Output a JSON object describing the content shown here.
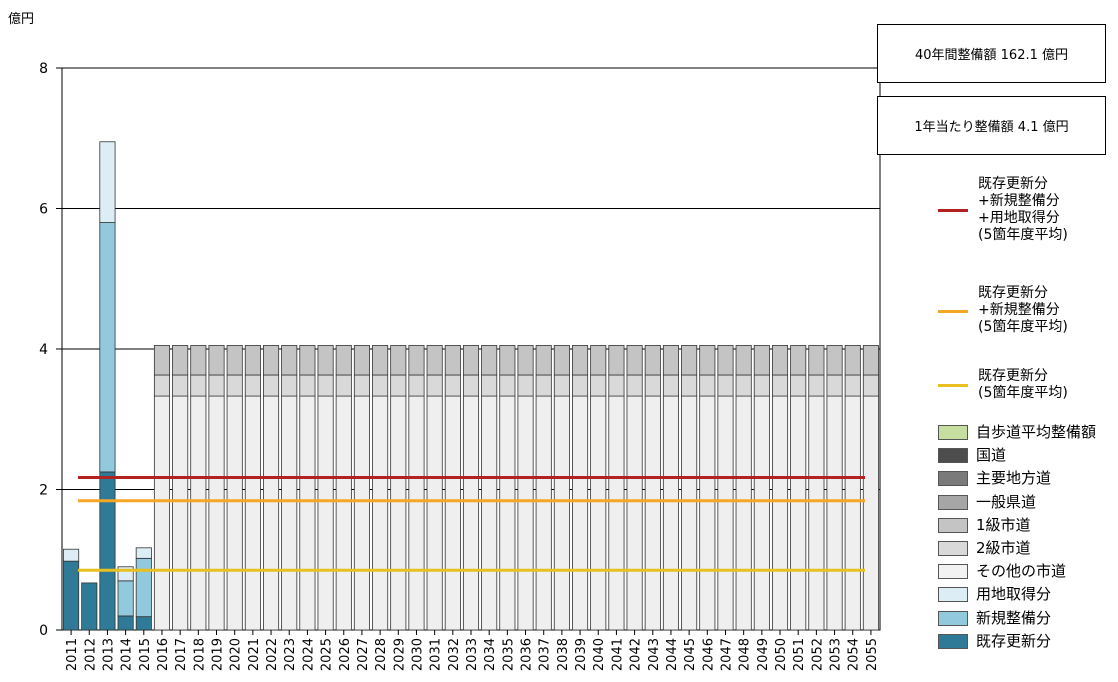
{
  "chart_data": {
    "type": "bar",
    "ylabel": "億円",
    "ylim": [
      0,
      8
    ],
    "yticks": [
      0,
      2,
      4,
      6,
      8
    ],
    "categories": [
      "2011",
      "2012",
      "2013",
      "2014",
      "2015",
      "2016",
      "2017",
      "2018",
      "2019",
      "2020",
      "2021",
      "2022",
      "2023",
      "2024",
      "2025",
      "2026",
      "2027",
      "2028",
      "2029",
      "2030",
      "2031",
      "2032",
      "2033",
      "2034",
      "2035",
      "2036",
      "2037",
      "2038",
      "2039",
      "2040",
      "2041",
      "2042",
      "2043",
      "2044",
      "2045",
      "2046",
      "2047",
      "2048",
      "2049",
      "2050",
      "2051",
      "2052",
      "2053",
      "2054",
      "2055"
    ],
    "series": [
      {
        "name": "既存更新分",
        "color": "#2f7a96",
        "values": [
          0.98,
          0.67,
          2.25,
          0.2,
          0.19,
          0,
          0,
          0,
          0,
          0,
          0,
          0,
          0,
          0,
          0,
          0,
          0,
          0,
          0,
          0,
          0,
          0,
          0,
          0,
          0,
          0,
          0,
          0,
          0,
          0,
          0,
          0,
          0,
          0,
          0,
          0,
          0,
          0,
          0,
          0,
          0,
          0,
          0,
          0,
          0
        ]
      },
      {
        "name": "新規整備分",
        "color": "#92c9dc",
        "values": [
          0.0,
          0.0,
          3.55,
          0.5,
          0.83,
          0,
          0,
          0,
          0,
          0,
          0,
          0,
          0,
          0,
          0,
          0,
          0,
          0,
          0,
          0,
          0,
          0,
          0,
          0,
          0,
          0,
          0,
          0,
          0,
          0,
          0,
          0,
          0,
          0,
          0,
          0,
          0,
          0,
          0,
          0,
          0,
          0,
          0,
          0,
          0
        ]
      },
      {
        "name": "用地取得分",
        "color": "#dcedf5",
        "values": [
          0.17,
          0.0,
          1.15,
          0.2,
          0.15,
          0,
          0,
          0,
          0,
          0,
          0,
          0,
          0,
          0,
          0,
          0,
          0,
          0,
          0,
          0,
          0,
          0,
          0,
          0,
          0,
          0,
          0,
          0,
          0,
          0,
          0,
          0,
          0,
          0,
          0,
          0,
          0,
          0,
          0,
          0,
          0,
          0,
          0,
          0,
          0
        ]
      },
      {
        "name": "その他の市道",
        "color": "#efefef",
        "values": [
          0,
          0,
          0,
          0,
          0,
          3.33,
          3.33,
          3.33,
          3.33,
          3.33,
          3.33,
          3.33,
          3.33,
          3.33,
          3.33,
          3.33,
          3.33,
          3.33,
          3.33,
          3.33,
          3.33,
          3.33,
          3.33,
          3.33,
          3.33,
          3.33,
          3.33,
          3.33,
          3.33,
          3.33,
          3.33,
          3.33,
          3.33,
          3.33,
          3.33,
          3.33,
          3.33,
          3.33,
          3.33,
          3.33,
          3.33,
          3.33,
          3.33,
          3.33,
          3.33
        ]
      },
      {
        "name": "2級市道",
        "color": "#d9d9d9",
        "values": [
          0,
          0,
          0,
          0,
          0,
          0.3,
          0.3,
          0.3,
          0.3,
          0.3,
          0.3,
          0.3,
          0.3,
          0.3,
          0.3,
          0.3,
          0.3,
          0.3,
          0.3,
          0.3,
          0.3,
          0.3,
          0.3,
          0.3,
          0.3,
          0.3,
          0.3,
          0.3,
          0.3,
          0.3,
          0.3,
          0.3,
          0.3,
          0.3,
          0.3,
          0.3,
          0.3,
          0.3,
          0.3,
          0.3,
          0.3,
          0.3,
          0.3,
          0.3,
          0.3
        ]
      },
      {
        "name": "1級市道",
        "color": "#c4c4c4",
        "values": [
          0,
          0,
          0,
          0,
          0,
          0.42,
          0.42,
          0.42,
          0.42,
          0.42,
          0.42,
          0.42,
          0.42,
          0.42,
          0.42,
          0.42,
          0.42,
          0.42,
          0.42,
          0.42,
          0.42,
          0.42,
          0.42,
          0.42,
          0.42,
          0.42,
          0.42,
          0.42,
          0.42,
          0.42,
          0.42,
          0.42,
          0.42,
          0.42,
          0.42,
          0.42,
          0.42,
          0.42,
          0.42,
          0.42,
          0.42,
          0.42,
          0.42,
          0.42,
          0.42
        ]
      }
    ],
    "avg_lines": [
      {
        "name": "既存更新分+新規整備分+用地取得分(5箇年度平均)",
        "color": "#b22222",
        "value": 2.17
      },
      {
        "name": "既存更新分+新規整備分(5箇年度平均)",
        "color": "#f5a623",
        "value": 1.84
      },
      {
        "name": "既存更新分(5箇年度平均)",
        "color": "#e8c020",
        "value": 0.85
      }
    ],
    "gridlines": true,
    "legend_position": "right"
  },
  "summary": {
    "total_label": "40年間整備額  162.1 億円",
    "annual_label": "1年当たり整備額  4.1 億円"
  },
  "legend_lines": [
    {
      "label": "既存更新分\n+新規整備分\n+用地取得分\n(5箇年度平均)",
      "color": "#b22222"
    },
    {
      "label": "既存更新分\n+新規整備分\n(5箇年度平均)",
      "color": "#f5a623"
    },
    {
      "label": "既存更新分\n(5箇年度平均)",
      "color": "#e8c020"
    }
  ],
  "legend_boxes": [
    {
      "label": "自歩道平均整備額",
      "color": "#c6dfa0"
    },
    {
      "label": "国道",
      "color": "#4d4d4d"
    },
    {
      "label": "主要地方道",
      "color": "#7a7a7a"
    },
    {
      "label": "一般県道",
      "color": "#a6a6a6"
    },
    {
      "label": "1級市道",
      "color": "#c4c4c4"
    },
    {
      "label": "2級市道",
      "color": "#d9d9d9"
    },
    {
      "label": "その他の市道",
      "color": "#f2f2f2"
    },
    {
      "label": "用地取得分",
      "color": "#dcedf5"
    },
    {
      "label": "新規整備分",
      "color": "#92c9dc"
    },
    {
      "label": "既存更新分",
      "color": "#2f7a96"
    }
  ]
}
